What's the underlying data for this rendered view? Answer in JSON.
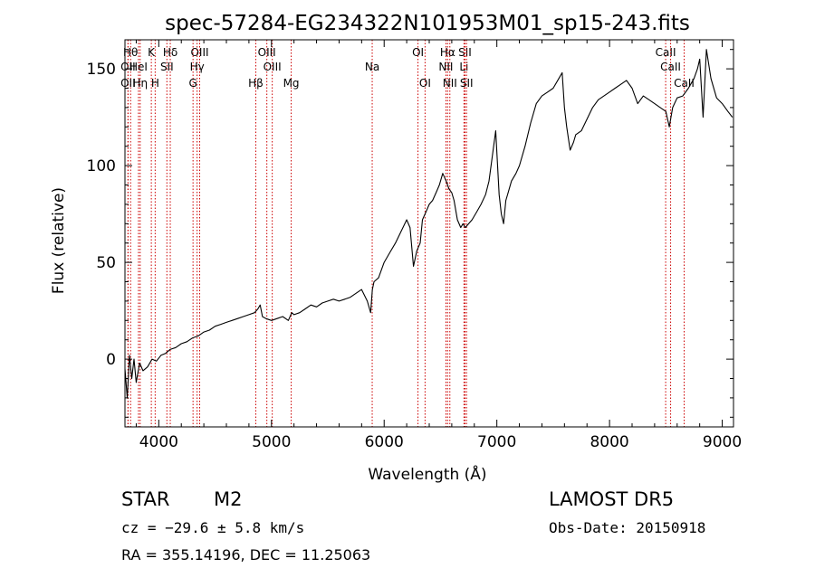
{
  "chart_data": {
    "type": "line",
    "title": "spec-57284-EG234322N101953M01_sp15-243.fits",
    "xlabel": "Wavelength (Å)",
    "ylabel": "Flux (relative)",
    "xlim": [
      3700,
      9100
    ],
    "ylim": [
      -35,
      165
    ],
    "x_ticks": [
      4000,
      5000,
      6000,
      7000,
      8000,
      9000
    ],
    "y_ticks": [
      0,
      50,
      100,
      150
    ],
    "series": [
      {
        "x": [
          3700,
          3720,
          3740,
          3760,
          3780,
          3800,
          3830,
          3860,
          3900,
          3940,
          3980,
          4020,
          4060,
          4100,
          4150,
          4200,
          4250,
          4300,
          4350,
          4400,
          4450,
          4500,
          4550,
          4600,
          4650,
          4700,
          4750,
          4800,
          4850,
          4880,
          4900,
          4920,
          4950,
          5000,
          5050,
          5100,
          5150,
          5180,
          5200,
          5250,
          5300,
          5350,
          5400,
          5450,
          5500,
          5550,
          5600,
          5650,
          5700,
          5750,
          5800,
          5850,
          5880,
          5895,
          5910,
          5950,
          6000,
          6050,
          6100,
          6150,
          6200,
          6230,
          6260,
          6290,
          6320,
          6340,
          6370,
          6400,
          6430,
          6460,
          6490,
          6520,
          6550,
          6575,
          6600,
          6620,
          6650,
          6680,
          6700,
          6720,
          6750,
          6780,
          6820,
          6860,
          6900,
          6930,
          6960,
          6990,
          7020,
          7040,
          7060,
          7080,
          7100,
          7130,
          7170,
          7200,
          7250,
          7300,
          7350,
          7400,
          7450,
          7500,
          7550,
          7580,
          7600,
          7620,
          7650,
          7680,
          7700,
          7750,
          7800,
          7850,
          7900,
          7950,
          8000,
          8050,
          8100,
          8150,
          8200,
          8250,
          8300,
          8350,
          8400,
          8450,
          8500,
          8530,
          8560,
          8600,
          8650,
          8700,
          8750,
          8780,
          8800,
          8830,
          8860,
          8900,
          8950,
          9000,
          9050,
          9090
        ],
        "y": [
          -5,
          -20,
          2,
          -10,
          0,
          -12,
          -2,
          -6,
          -4,
          0,
          -1,
          2,
          3,
          5,
          6,
          8,
          9,
          11,
          12,
          14,
          15,
          17,
          18,
          19,
          20,
          21,
          22,
          23,
          24,
          26,
          28,
          22,
          21,
          20,
          21,
          22,
          20,
          24,
          23,
          24,
          26,
          28,
          27,
          29,
          30,
          31,
          30,
          31,
          32,
          34,
          36,
          30,
          24,
          36,
          40,
          42,
          50,
          55,
          60,
          66,
          72,
          68,
          48,
          56,
          60,
          72,
          76,
          80,
          82,
          86,
          90,
          96,
          92,
          88,
          86,
          82,
          72,
          68,
          70,
          68,
          70,
          72,
          76,
          80,
          85,
          92,
          105,
          118,
          85,
          75,
          70,
          82,
          86,
          92,
          96,
          100,
          110,
          122,
          132,
          136,
          138,
          140,
          145,
          148,
          130,
          120,
          108,
          112,
          116,
          118,
          124,
          130,
          134,
          136,
          138,
          140,
          142,
          144,
          140,
          132,
          136,
          134,
          132,
          130,
          128,
          120,
          130,
          135,
          136,
          140,
          145,
          150,
          155,
          125,
          160,
          145,
          135,
          132,
          128,
          125
        ]
      }
    ],
    "line_markers": [
      {
        "label": "Hθ",
        "x": 3750,
        "row": 0
      },
      {
        "label": "OII",
        "x": 3727,
        "row": 1
      },
      {
        "label": "OII",
        "x": 3727,
        "row": 2
      },
      {
        "label": "HeI",
        "x": 3820,
        "row": 1
      },
      {
        "label": "Hη",
        "x": 3835,
        "row": 2
      },
      {
        "label": "K",
        "x": 3934,
        "row": 0
      },
      {
        "label": "H",
        "x": 3968,
        "row": 2
      },
      {
        "label": "SII",
        "x": 4072,
        "row": 1
      },
      {
        "label": "Hδ",
        "x": 4102,
        "row": 0
      },
      {
        "label": "OIII",
        "x": 4363,
        "row": 0
      },
      {
        "label": "Hγ",
        "x": 4340,
        "row": 1
      },
      {
        "label": "G",
        "x": 4304,
        "row": 2
      },
      {
        "label": "OIII",
        "x": 4959,
        "row": 0
      },
      {
        "label": "OIII",
        "x": 5007,
        "row": 1
      },
      {
        "label": "Hβ",
        "x": 4861,
        "row": 2
      },
      {
        "label": "Mg",
        "x": 5175,
        "row": 2
      },
      {
        "label": "Na",
        "x": 5894,
        "row": 1
      },
      {
        "label": "OI",
        "x": 6300,
        "row": 0
      },
      {
        "label": "OI",
        "x": 6363,
        "row": 2
      },
      {
        "label": "Hα",
        "x": 6563,
        "row": 0
      },
      {
        "label": "NII",
        "x": 6548,
        "row": 1
      },
      {
        "label": "NII",
        "x": 6583,
        "row": 2
      },
      {
        "label": "SII",
        "x": 6717,
        "row": 0
      },
      {
        "label": "Li",
        "x": 6708,
        "row": 1
      },
      {
        "label": "SII",
        "x": 6731,
        "row": 2
      },
      {
        "label": "CaII",
        "x": 8498,
        "row": 0
      },
      {
        "label": "CaII",
        "x": 8542,
        "row": 1
      },
      {
        "label": "CaII",
        "x": 8662,
        "row": 2
      }
    ],
    "line_color": "#000000",
    "marker_color": "#cc0000",
    "grid": false
  },
  "info": {
    "object_type": "STAR",
    "subclass": "M2",
    "survey": "LAMOST  DR5",
    "cz": "cz = −29.6 ± 5.8 km/s",
    "obs_date": "Obs-Date: 20150918",
    "coords": "RA = 355.14196, DEC =  11.25063"
  }
}
